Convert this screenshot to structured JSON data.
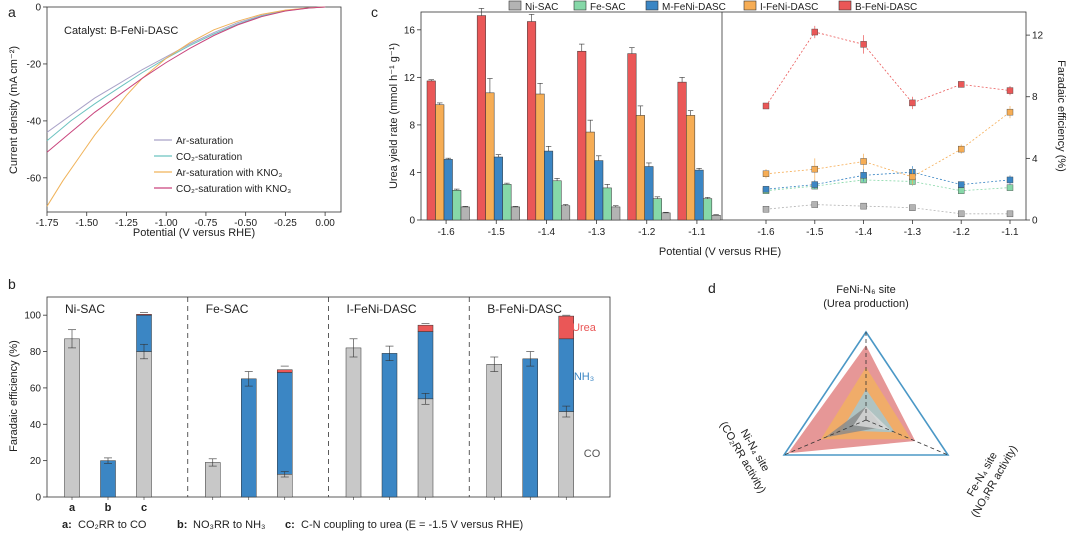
{
  "colors": {
    "ni_sac": "#b3b3b3",
    "fe_sac": "#86d8a8",
    "m_fenni": "#3b86c4",
    "i_fenni": "#f6ad55",
    "b_fenni": "#ea5757",
    "co": "#c8c8c8",
    "nh3": "#3b86c4",
    "urea": "#ea5757",
    "radar_outline": "#4b98c6"
  },
  "chart_data": [
    {
      "panel": "a",
      "type": "line",
      "annotation": "Catalyst: B-FeNi-DASC",
      "xlabel": "Potential (V versus RHE)",
      "ylabel": "Current density (mA cm⁻²)",
      "xlim": [
        -1.75,
        0.1
      ],
      "ylim": [
        -72,
        0
      ],
      "xticks": [
        "-1.75",
        "-1.50",
        "-1.25",
        "-1.00",
        "-0.75",
        "-0.50",
        "-0.25",
        "0.00"
      ],
      "xtick_values": [
        -1.75,
        -1.5,
        -1.25,
        -1.0,
        -0.75,
        -0.5,
        -0.25,
        0.0
      ],
      "yticks": [
        "0",
        "-20",
        "-40",
        "-60"
      ],
      "ytick_values": [
        0,
        -20,
        -40,
        -60
      ],
      "series": [
        {
          "name": "Ar-saturation",
          "color": "#a9a2c8",
          "x": [
            -1.75,
            -1.6,
            -1.45,
            -1.3,
            -1.15,
            -1.0,
            -0.85,
            -0.7,
            -0.55,
            -0.4,
            -0.25,
            -0.1,
            0.0
          ],
          "y": [
            -44,
            -38,
            -32,
            -27,
            -22,
            -17.5,
            -13,
            -9,
            -5.5,
            -3,
            -1.2,
            -0.3,
            0
          ]
        },
        {
          "name": "CO₂-saturation",
          "color": "#6cc3c0",
          "x": [
            -1.75,
            -1.6,
            -1.45,
            -1.3,
            -1.15,
            -1.0,
            -0.85,
            -0.7,
            -0.55,
            -0.4,
            -0.25,
            -0.1,
            0.0
          ],
          "y": [
            -47,
            -40,
            -34,
            -28.5,
            -23,
            -18,
            -13.5,
            -9.5,
            -6,
            -3.2,
            -1.3,
            -0.3,
            0
          ]
        },
        {
          "name": "Ar-saturation with KNO₃",
          "color": "#f0b35a",
          "x": [
            -1.75,
            -1.65,
            -1.55,
            -1.45,
            -1.35,
            -1.25,
            -1.15,
            -1.0,
            -0.85,
            -0.7,
            -0.55,
            -0.4,
            -0.25,
            -0.1,
            0.0
          ],
          "y": [
            -70,
            -61,
            -53,
            -45,
            -38,
            -31,
            -25,
            -18,
            -12.5,
            -8,
            -5,
            -2.6,
            -1.1,
            -0.3,
            0
          ]
        },
        {
          "name": "CO₂-saturation with KNO₃",
          "color": "#c9457d",
          "x": [
            -1.75,
            -1.6,
            -1.45,
            -1.3,
            -1.15,
            -1.0,
            -0.85,
            -0.7,
            -0.55,
            -0.4,
            -0.25,
            -0.1,
            0.0
          ],
          "y": [
            -51,
            -44,
            -37,
            -31,
            -25,
            -19.5,
            -14.5,
            -10,
            -6.3,
            -3.4,
            -1.4,
            -0.35,
            0
          ]
        }
      ]
    },
    {
      "panel": "c",
      "type": "bar",
      "xlabel": "Potential (V versus RHE)",
      "ylabel": "Urea yield rate (mmol h⁻¹ g⁻¹)",
      "ylim": [
        0,
        17.5
      ],
      "yticks": [
        "0",
        "4",
        "8",
        "12",
        "16"
      ],
      "ytick_values": [
        0,
        4,
        8,
        12,
        16
      ],
      "categories": [
        "-1.6",
        "-1.5",
        "-1.4",
        "-1.3",
        "-1.2",
        "-1.1"
      ],
      "series": [
        {
          "name": "Ni-SAC",
          "color_key": "ni_sac",
          "values": [
            1.1,
            1.1,
            1.2,
            1.1,
            0.6,
            0.4
          ],
          "errors": [
            0.05,
            0.05,
            0.1,
            0.1,
            0.05,
            0.05
          ]
        },
        {
          "name": "Fe-SAC",
          "color_key": "fe_sac",
          "values": [
            2.5,
            3.0,
            3.3,
            2.7,
            1.8,
            1.8
          ],
          "errors": [
            0.1,
            0.1,
            0.2,
            0.3,
            0.15,
            0.1
          ]
        },
        {
          "name": "M-FeNi-DASC",
          "color_key": "m_fenni",
          "values": [
            5.1,
            5.3,
            5.8,
            5.0,
            4.5,
            4.2
          ],
          "errors": [
            0.1,
            0.2,
            0.4,
            0.4,
            0.3,
            0.15
          ]
        },
        {
          "name": "I-FeNi-DASC",
          "color_key": "i_fenni",
          "values": [
            9.7,
            10.7,
            10.6,
            7.4,
            8.8,
            8.8
          ],
          "errors": [
            0.15,
            1.2,
            0.9,
            1.0,
            0.8,
            0.4
          ]
        },
        {
          "name": "B-FeNi-DASC",
          "color_key": "b_fenni",
          "values": [
            11.7,
            17.2,
            16.7,
            14.2,
            14.0,
            11.6
          ],
          "errors": [
            0.1,
            0.6,
            0.6,
            0.6,
            0.5,
            0.4
          ]
        }
      ]
    },
    {
      "panel": "c-right",
      "type": "line",
      "ylabel": "Faradaic efficiency (%)",
      "ylim": [
        0,
        13.5
      ],
      "yticks": [
        "0",
        "4",
        "8",
        "12"
      ],
      "ytick_values": [
        0,
        4,
        8,
        12
      ],
      "categories": [
        "-1.6",
        "-1.5",
        "-1.4",
        "-1.3",
        "-1.2",
        "-1.1"
      ],
      "series": [
        {
          "name": "Ni-SAC",
          "color_key": "ni_sac",
          "values": [
            0.7,
            1.0,
            0.9,
            0.8,
            0.4,
            0.4
          ],
          "errors": [
            0.1,
            0.15,
            0.15,
            0.15,
            0.1,
            0.1
          ]
        },
        {
          "name": "Fe-SAC",
          "color_key": "fe_sac",
          "values": [
            1.9,
            2.2,
            2.6,
            2.5,
            1.9,
            2.1
          ],
          "errors": [
            0.15,
            0.2,
            0.2,
            0.3,
            0.2,
            0.15
          ]
        },
        {
          "name": "M-FeNi-DASC",
          "color_key": "m_fenni",
          "values": [
            2.0,
            2.3,
            2.9,
            3.1,
            2.3,
            2.6
          ],
          "errors": [
            0.2,
            0.3,
            0.4,
            0.4,
            0.2,
            0.3
          ]
        },
        {
          "name": "I-FeNi-DASC",
          "color_key": "i_fenni",
          "values": [
            3.0,
            3.3,
            3.8,
            2.8,
            4.6,
            7.0
          ],
          "errors": [
            0.3,
            0.7,
            0.5,
            0.5,
            0.3,
            0.4
          ]
        },
        {
          "name": "B-FeNi-DASC",
          "color_key": "b_fenni",
          "values": [
            7.4,
            12.2,
            11.4,
            7.6,
            8.8,
            8.4
          ],
          "errors": [
            0.15,
            0.4,
            0.6,
            0.4,
            0.2,
            0.3
          ]
        }
      ]
    },
    {
      "panel": "b",
      "type": "bar",
      "stacked": true,
      "ylabel": "Faradaic efficiency (%)",
      "ylim": [
        0,
        110
      ],
      "yticks": [
        "0",
        "20",
        "40",
        "60",
        "80",
        "100"
      ],
      "ytick_values": [
        0,
        20,
        40,
        60,
        80,
        100
      ],
      "groups": [
        "Ni-SAC",
        "Fe-SAC",
        "I-FeNi-DASC",
        "B-FeNi-DASC"
      ],
      "bar_labels": [
        "a",
        "b",
        "c"
      ],
      "component_labels": {
        "urea": "Urea",
        "nh3": "NH₃",
        "co": "CO"
      },
      "bars": [
        {
          "group": "Ni-SAC",
          "bar": "a",
          "co": 87,
          "nh3": 0,
          "urea": 0,
          "err": 5
        },
        {
          "group": "Ni-SAC",
          "bar": "b",
          "co": 0,
          "nh3": 20,
          "urea": 0,
          "err": 1.5
        },
        {
          "group": "Ni-SAC",
          "bar": "c",
          "co": 80,
          "nh3": 20,
          "urea": 0.5,
          "err": 4,
          "top_err": 1
        },
        {
          "group": "Fe-SAC",
          "bar": "a",
          "co": 19,
          "nh3": 0,
          "urea": 0,
          "err": 2
        },
        {
          "group": "Fe-SAC",
          "bar": "b",
          "co": 0,
          "nh3": 65,
          "urea": 0,
          "err": 4
        },
        {
          "group": "Fe-SAC",
          "bar": "c",
          "co": 12.5,
          "nh3": 56,
          "urea": 1.5,
          "err": 1.5,
          "top_err": 2
        },
        {
          "group": "I-FeNi-DASC",
          "bar": "a",
          "co": 82,
          "nh3": 0,
          "urea": 0,
          "err": 5
        },
        {
          "group": "I-FeNi-DASC",
          "bar": "b",
          "co": 0,
          "nh3": 79,
          "urea": 0,
          "err": 4
        },
        {
          "group": "I-FeNi-DASC",
          "bar": "c",
          "co": 54,
          "nh3": 37,
          "urea": 3.5,
          "err": 3,
          "top_err": 1
        },
        {
          "group": "B-FeNi-DASC",
          "bar": "a",
          "co": 73,
          "nh3": 0,
          "urea": 0,
          "err": 4
        },
        {
          "group": "B-FeNi-DASC",
          "bar": "b",
          "co": 0,
          "nh3": 76,
          "urea": 0,
          "err": 4
        },
        {
          "group": "B-FeNi-DASC",
          "bar": "c",
          "co": 47,
          "nh3": 40,
          "urea": 12.5,
          "err": 3,
          "top_err": 0.5
        }
      ],
      "caption_parts": [
        {
          "key": "a:",
          "text": "CO₂RR to CO"
        },
        {
          "key": "b:",
          "text": "NO₃RR to NH₃"
        },
        {
          "key": "c:",
          "text": "C-N coupling to urea   (E = -1.5 V versus RHE)"
        }
      ]
    },
    {
      "panel": "d",
      "type": "radar",
      "axes": [
        {
          "label": "FeNi-N₆ site",
          "sublabel": "(Urea production)"
        },
        {
          "label": "Ni-N₄ site",
          "sublabel": "(CO₂RR activity)"
        },
        {
          "label": "Fe-N₄ site",
          "sublabel": "(NO₃RR activity)"
        }
      ],
      "series": [
        {
          "name": "B-FeNi-DASC",
          "color_key": "b_fenni",
          "values": [
            0.85,
            0.95,
            0.6
          ]
        },
        {
          "name": "I-FeNi-DASC",
          "color_key": "i_fenni",
          "values": [
            0.6,
            0.55,
            0.55
          ]
        },
        {
          "name": "M-FeNi-DASC",
          "color_key": "m_fenni",
          "values": [
            0.35,
            0.3,
            0.35
          ]
        },
        {
          "name": "Ni-SAC",
          "color_key": "ni_sac",
          "values": [
            0.15,
            0.5,
            0.2
          ]
        },
        {
          "name": "Fe-SAC",
          "color_key": "fe_sac",
          "values": [
            0.15,
            0.15,
            0.3
          ]
        }
      ]
    }
  ],
  "panel_labels": {
    "a": "a",
    "b": "b",
    "c": "c",
    "d": "d"
  }
}
